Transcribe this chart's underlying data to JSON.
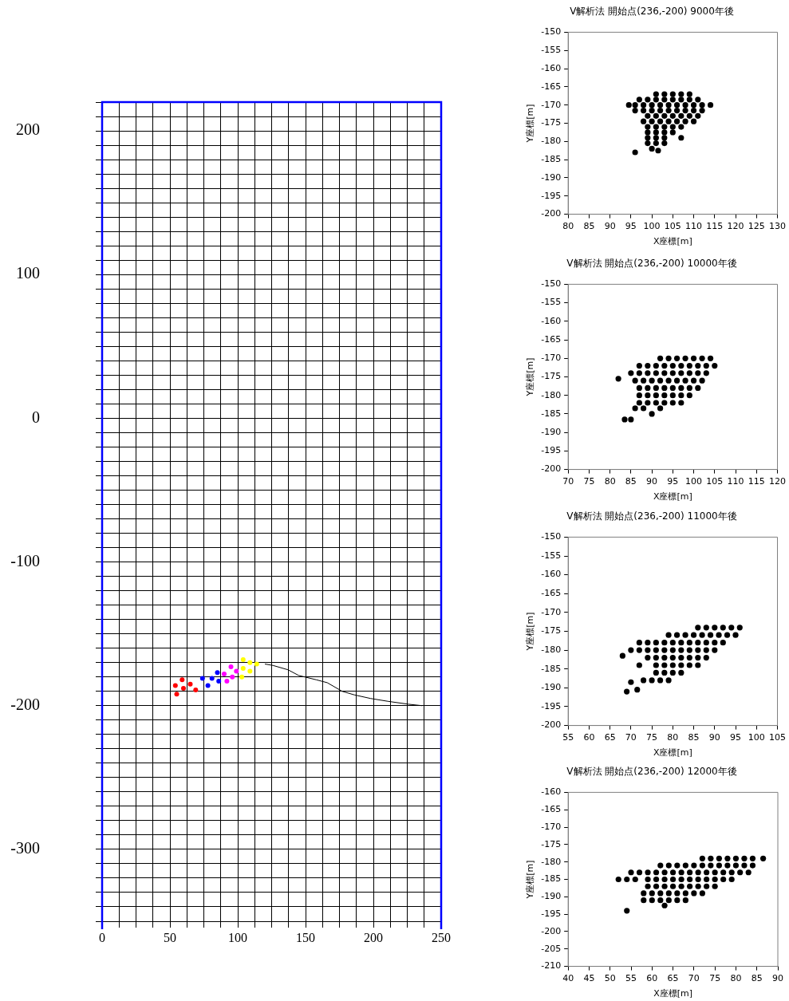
{
  "chart_data": [
    {
      "type": "scatter",
      "xlim": [
        0,
        250
      ],
      "xticks": [
        0,
        {
          "value": 12.5,
          "label": null
        },
        {
          "value": 25,
          "label": null
        },
        {
          "value": 37.5,
          "label": null
        },
        50,
        {
          "value": 62.5,
          "label": null
        },
        {
          "value": 75,
          "label": null
        },
        {
          "value": 87.5,
          "label": null
        },
        100,
        {
          "value": 112.5,
          "label": null
        },
        {
          "value": 125,
          "label": null
        },
        {
          "value": 137.5,
          "label": null
        },
        150,
        {
          "value": 162.5,
          "label": null
        },
        {
          "value": 175,
          "label": null
        },
        {
          "value": 187.5,
          "label": null
        },
        200,
        {
          "value": 212.5,
          "label": null
        },
        {
          "value": 225,
          "label": null
        },
        {
          "value": 237.5,
          "label": null
        },
        250
      ],
      "ylim": [
        -350,
        220
      ],
      "yticks": [
        {
          "value": -350,
          "label": null
        },
        {
          "value": -340,
          "label": null
        },
        {
          "value": -330,
          "label": null
        },
        {
          "value": -320,
          "label": null
        },
        {
          "value": -310,
          "label": null
        },
        -300,
        {
          "value": -290,
          "label": null
        },
        {
          "value": -280,
          "label": null
        },
        {
          "value": -270,
          "label": null
        },
        {
          "value": -260,
          "label": null
        },
        {
          "value": -250,
          "label": null
        },
        {
          "value": -240,
          "label": null
        },
        {
          "value": -230,
          "label": null
        },
        {
          "value": -220,
          "label": null
        },
        {
          "value": -210,
          "label": null
        },
        -200,
        {
          "value": -190,
          "label": null
        },
        {
          "value": -180,
          "label": null
        },
        {
          "value": -170,
          "label": null
        },
        {
          "value": -160,
          "label": null
        },
        {
          "value": -150,
          "label": null
        },
        {
          "value": -140,
          "label": null
        },
        {
          "value": -130,
          "label": null
        },
        {
          "value": -120,
          "label": null
        },
        {
          "value": -110,
          "label": null
        },
        -100,
        {
          "value": -90,
          "label": null
        },
        {
          "value": -80,
          "label": null
        },
        {
          "value": -70,
          "label": null
        },
        {
          "value": -60,
          "label": null
        },
        {
          "value": -50,
          "label": null
        },
        {
          "value": -40,
          "label": null
        },
        {
          "value": -30,
          "label": null
        },
        {
          "value": -20,
          "label": null
        },
        {
          "value": -10,
          "label": null
        },
        0,
        {
          "value": 10,
          "label": null
        },
        {
          "value": 20,
          "label": null
        },
        {
          "value": 30,
          "label": null
        },
        {
          "value": 40,
          "label": null
        },
        {
          "value": 50,
          "label": null
        },
        {
          "value": 60,
          "label": null
        },
        {
          "value": 70,
          "label": null
        },
        {
          "value": 80,
          "label": null
        },
        {
          "value": 90,
          "label": null
        },
        100,
        {
          "value": 110,
          "label": null
        },
        {
          "value": 120,
          "label": null
        },
        {
          "value": 130,
          "label": null
        },
        {
          "value": 140,
          "label": null
        },
        {
          "value": 150,
          "label": null
        },
        {
          "value": 160,
          "label": null
        },
        {
          "value": 170,
          "label": null
        },
        {
          "value": 180,
          "label": null
        },
        {
          "value": 190,
          "label": null
        },
        200,
        {
          "value": 210,
          "label": null
        },
        {
          "value": 220,
          "label": null
        }
      ],
      "grid": true,
      "series": [
        {
          "type": "line",
          "color": "#000000",
          "x": [
            236,
            226,
            211,
            198,
            186,
            177,
            166,
            158,
            145,
            137,
            126,
            120
          ],
          "values": [
            -200,
            -199,
            -197,
            -195,
            -192.5,
            -190,
            -184,
            -182,
            -179,
            -175,
            -172,
            -171
          ]
        },
        {
          "color": "#ff0000",
          "x": [
            54,
            59,
            60,
            65,
            69,
            55
          ],
          "values": [
            -186,
            -182,
            -188,
            -185,
            -189,
            -192
          ]
        },
        {
          "color": "#0000ff",
          "x": [
            74,
            78,
            81,
            85,
            86
          ],
          "values": [
            -181,
            -186,
            -181,
            -177,
            -183
          ]
        },
        {
          "color": "#ff00ff",
          "x": [
            90,
            95,
            99,
            92,
            96
          ],
          "values": [
            -178,
            -173,
            -176,
            -183,
            -180
          ]
        },
        {
          "color": "#ffff00",
          "x": [
            104,
            109,
            114,
            104,
            103,
            109
          ],
          "values": [
            -168,
            -170,
            -171,
            -174,
            -180,
            -176
          ]
        }
      ]
    },
    {
      "type": "scatter",
      "title": "V解析法 開始点(236,-200) 9000年後",
      "xlabel": "X座標[m]",
      "ylabel": "Y座標[m]",
      "xlim": [
        80,
        130
      ],
      "xticks": [
        80,
        85,
        90,
        95,
        100,
        105,
        110,
        115,
        120,
        125,
        130
      ],
      "ylim": [
        -200,
        -150
      ],
      "yticks": [
        -200,
        -195,
        -190,
        -185,
        -180,
        -175,
        -170,
        -165,
        -160,
        -155,
        -150
      ],
      "marker": "circle",
      "series": [
        {
          "color": "#000000",
          "x": [
            101,
            103,
            105,
            107,
            109,
            97,
            99,
            101,
            103,
            105,
            107,
            109,
            111,
            94.5,
            96,
            98,
            100,
            102,
            104,
            106,
            108,
            110,
            112,
            114,
            96,
            98,
            100,
            102,
            104,
            106,
            108,
            110,
            112,
            99,
            101,
            103,
            105,
            107,
            109,
            111,
            98,
            100,
            102,
            104,
            106,
            108,
            110,
            99,
            101,
            103,
            105,
            107,
            99,
            101,
            103,
            105,
            99,
            101,
            103,
            107,
            99,
            101,
            103,
            100,
            96,
            101.5
          ],
          "values": [
            -167,
            -167,
            -167,
            -167,
            -167,
            -168.5,
            -168.5,
            -168.5,
            -168.5,
            -168.5,
            -168.5,
            -168.5,
            -168.5,
            -170,
            -170,
            -170,
            -170,
            -170,
            -170,
            -170,
            -170,
            -170,
            -170,
            -170,
            -171.5,
            -171.5,
            -171.5,
            -171.5,
            -171.5,
            -171.5,
            -171.5,
            -171.5,
            -171.5,
            -173,
            -173,
            -173,
            -173,
            -173,
            -173,
            -173,
            -174.5,
            -174.5,
            -174.5,
            -174.5,
            -174.5,
            -174.5,
            -174.5,
            -176,
            -176,
            -176,
            -176,
            -176,
            -177.5,
            -177.5,
            -177.5,
            -177.5,
            -179,
            -179,
            -179,
            -179,
            -180.5,
            -180.5,
            -180.5,
            -182,
            -183,
            -182.5
          ]
        }
      ]
    },
    {
      "type": "scatter",
      "title": "V解析法 開始点(236,-200) 10000年後",
      "xlabel": "X座標[m]",
      "ylabel": "Y座標[m]",
      "xlim": [
        70,
        120
      ],
      "xticks": [
        70,
        75,
        80,
        85,
        90,
        95,
        100,
        105,
        110,
        115,
        120
      ],
      "ylim": [
        -200,
        -150
      ],
      "yticks": [
        -200,
        -195,
        -190,
        -185,
        -180,
        -175,
        -170,
        -165,
        -160,
        -155,
        -150
      ],
      "marker": "circle",
      "series": [
        {
          "color": "#000000",
          "x": [
            92,
            94,
            96,
            98,
            100,
            102,
            104,
            87,
            89,
            91,
            93,
            95,
            97,
            99,
            101,
            103,
            105,
            85,
            87,
            89,
            91,
            93,
            95,
            97,
            99,
            101,
            103,
            82,
            86,
            88,
            90,
            92,
            94,
            96,
            98,
            100,
            102,
            87,
            89,
            91,
            93,
            95,
            97,
            99,
            101,
            87,
            89,
            91,
            93,
            95,
            97,
            99,
            87,
            89,
            91,
            93,
            95,
            97,
            86,
            88,
            92,
            90,
            83.5,
            85
          ],
          "values": [
            -170,
            -170,
            -170,
            -170,
            -170,
            -170,
            -170,
            -172,
            -172,
            -172,
            -172,
            -172,
            -172,
            -172,
            -172,
            -172,
            -172,
            -174,
            -174,
            -174,
            -174,
            -174,
            -174,
            -174,
            -174,
            -174,
            -174,
            -175.5,
            -176,
            -176,
            -176,
            -176,
            -176,
            -176,
            -176,
            -176,
            -176,
            -178,
            -178,
            -178,
            -178,
            -178,
            -178,
            -178,
            -178,
            -180,
            -180,
            -180,
            -180,
            -180,
            -180,
            -180,
            -182,
            -182,
            -182,
            -182,
            -182,
            -182,
            -183.5,
            -183.5,
            -183.5,
            -185,
            -186.5,
            -186.5
          ]
        }
      ]
    },
    {
      "type": "scatter",
      "title": "V解析法 開始点(236,-200) 11000年後",
      "xlabel": "X座標[m]",
      "ylabel": "Y座標[m]",
      "xlim": [
        55,
        105
      ],
      "xticks": [
        55,
        60,
        65,
        70,
        75,
        80,
        85,
        90,
        95,
        100,
        105
      ],
      "ylim": [
        -200,
        -150
      ],
      "yticks": [
        -200,
        -195,
        -190,
        -185,
        -180,
        -175,
        -170,
        -165,
        -160,
        -155,
        -150
      ],
      "marker": "circle",
      "series": [
        {
          "color": "#000000",
          "x": [
            86,
            88,
            90,
            92,
            94,
            96,
            79,
            81,
            83,
            85,
            87,
            89,
            91,
            93,
            95,
            72,
            74,
            76,
            78,
            80,
            82,
            84,
            86,
            88,
            90,
            92,
            70,
            72,
            74,
            76,
            78,
            80,
            82,
            84,
            86,
            88,
            90,
            68,
            74,
            76,
            78,
            80,
            82,
            84,
            86,
            88,
            72,
            76,
            78,
            80,
            82,
            84,
            86,
            76,
            78,
            80,
            82,
            73,
            75,
            77,
            79,
            70,
            71.5,
            69
          ],
          "values": [
            -174,
            -174,
            -174,
            -174,
            -174,
            -174,
            -176,
            -176,
            -176,
            -176,
            -176,
            -176,
            -176,
            -176,
            -176,
            -178,
            -178,
            -178,
            -178,
            -178,
            -178,
            -178,
            -178,
            -178,
            -178,
            -178,
            -180,
            -180,
            -180,
            -180,
            -180,
            -180,
            -180,
            -180,
            -180,
            -180,
            -180,
            -181.5,
            -182,
            -182,
            -182,
            -182,
            -182,
            -182,
            -182,
            -182,
            -184,
            -184,
            -184,
            -184,
            -184,
            -184,
            -184,
            -186,
            -186,
            -186,
            -186,
            -188,
            -188,
            -188,
            -188,
            -188.5,
            -190.5,
            -191
          ]
        }
      ]
    },
    {
      "type": "scatter",
      "title": "V解析法 開始点(236,-200) 12000年後",
      "xlabel": "X座標[m]",
      "ylabel": "Y座標[m]",
      "xlim": [
        40,
        90
      ],
      "xticks": [
        40,
        45,
        50,
        55,
        60,
        65,
        70,
        75,
        80,
        85,
        90
      ],
      "ylim": [
        -210,
        -160
      ],
      "yticks": [
        -210,
        -205,
        -200,
        -195,
        -190,
        -185,
        -180,
        -175,
        -170,
        -165,
        -160
      ],
      "marker": "circle",
      "series": [
        {
          "color": "#000000",
          "x": [
            72,
            74,
            76,
            78,
            80,
            82,
            84,
            86.5,
            62,
            64,
            66,
            68,
            70,
            72,
            74,
            76,
            78,
            80,
            82,
            84,
            55,
            57,
            59,
            61,
            63,
            65,
            67,
            69,
            71,
            73,
            75,
            77,
            79,
            81,
            83,
            52,
            54,
            56,
            59,
            61,
            63,
            65,
            67,
            69,
            71,
            73,
            75,
            77,
            79,
            59,
            61,
            63,
            65,
            67,
            69,
            71,
            73,
            75,
            58,
            60,
            62,
            64,
            66,
            68,
            70,
            72,
            58,
            60,
            62,
            64,
            66,
            68,
            63,
            54
          ],
          "values": [
            -179,
            -179,
            -179,
            -179,
            -179,
            -179,
            -179,
            -179,
            -181,
            -181,
            -181,
            -181,
            -181,
            -181,
            -181,
            -181,
            -181,
            -181,
            -181,
            -181,
            -183,
            -183,
            -183,
            -183,
            -183,
            -183,
            -183,
            -183,
            -183,
            -183,
            -183,
            -183,
            -183,
            -183,
            -183,
            -185,
            -185,
            -185,
            -185,
            -185,
            -185,
            -185,
            -185,
            -185,
            -185,
            -185,
            -185,
            -185,
            -185,
            -187,
            -187,
            -187,
            -187,
            -187,
            -187,
            -187,
            -187,
            -187,
            -189,
            -189,
            -189,
            -189,
            -189,
            -189,
            -189,
            -189,
            -191,
            -191,
            -191,
            -191,
            -191,
            -191,
            -192.5,
            -194
          ]
        }
      ]
    }
  ]
}
